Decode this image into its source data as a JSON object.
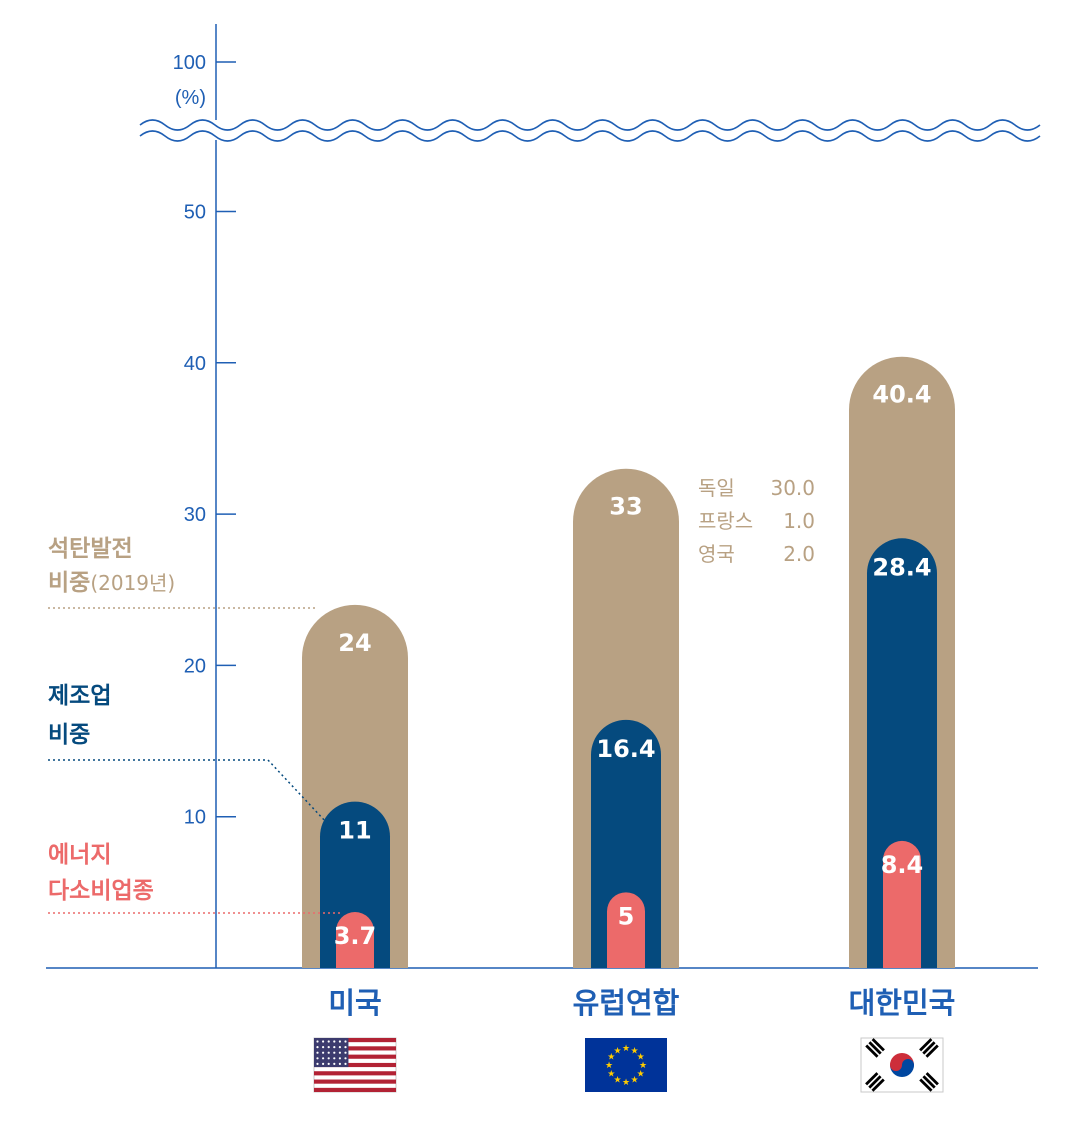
{
  "chart_data": {
    "type": "bar",
    "categories": [
      "미국",
      "유럽연합",
      "대한민국"
    ],
    "series": [
      {
        "name": "석탄발전 비중(2019년)",
        "key": "coal",
        "values": [
          24,
          33,
          40.4
        ],
        "labels": [
          "24",
          "33",
          "40.4"
        ],
        "color": "#b8a183"
      },
      {
        "name": "제조업 비중",
        "key": "manufacturing",
        "values": [
          11,
          16.4,
          28.4
        ],
        "labels": [
          "11",
          "16.4",
          "28.4"
        ],
        "color": "#054a7e"
      },
      {
        "name": "에너지 다소비업종",
        "key": "energy",
        "values": [
          3.7,
          5,
          8.4
        ],
        "labels": [
          "3.7",
          "5",
          "8.4"
        ],
        "color": "#ec6a6a"
      }
    ],
    "y_ticks": [
      "10",
      "20",
      "30",
      "40",
      "50",
      "100"
    ],
    "y_unit": "(%)",
    "ylim": [
      0,
      100
    ],
    "axis_break": "between 50 and 100",
    "legend": {
      "coal": [
        "석탄발전",
        "비중",
        "(2019년)"
      ],
      "manufacturing": [
        "제조업",
        "비중"
      ],
      "energy": [
        "에너지",
        "다소비업종"
      ]
    },
    "annotation": {
      "category": "유럽연합",
      "rows": [
        {
          "country": "독일",
          "value": "30.0"
        },
        {
          "country": "프랑스",
          "value": "1.0"
        },
        {
          "country": "영국",
          "value": "2.0"
        }
      ]
    },
    "flags": [
      "us-flag",
      "eu-flag",
      "kr-flag"
    ]
  },
  "colors": {
    "axis": "#1f5fb4",
    "coal": "#b8a183",
    "manufacturing": "#054a7e",
    "energy": "#ec6a6a",
    "white": "#ffffff"
  }
}
